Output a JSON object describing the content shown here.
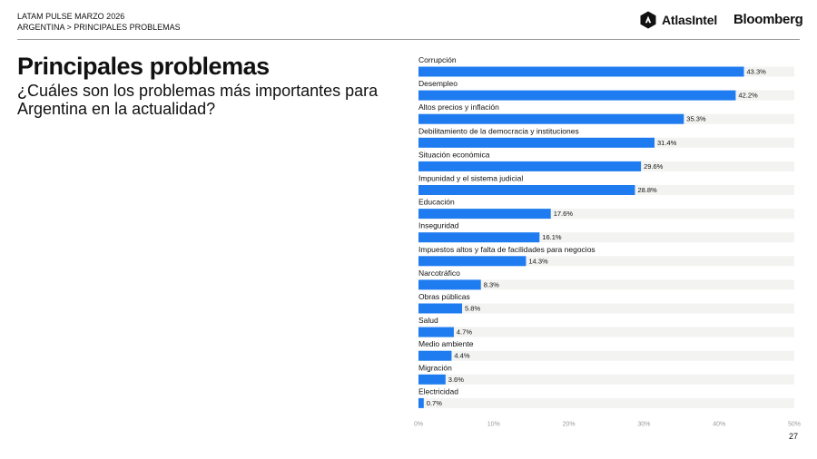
{
  "header": {
    "line1": "LATAM PULSE MARZO 2026",
    "line2": "ARGENTINA > PRINCIPALES PROBLEMAS"
  },
  "brands": {
    "atlas": "AtlasIntel",
    "bloomberg": "Bloomberg"
  },
  "main": {
    "title": "Principales problemas",
    "subtitle": "¿Cuáles son los problemas más importantes para Argentina en la actualidad?"
  },
  "colors": {
    "bar": "#1f7cf0",
    "track": "#f3f3f1",
    "text": "#111111",
    "tick": "#9a9a9a"
  },
  "chart_data": {
    "type": "bar",
    "orientation": "horizontal",
    "categories": [
      "Corrupción",
      "Desempleo",
      "Altos precios y inflación",
      "Debilitamiento de la democracia y instituciones",
      "Situación económica",
      "Impunidad y el sistema judicial",
      "Educación",
      "Inseguridad",
      "Impuestos altos y falta de facilidades para negocios",
      "Narcotráfico",
      "Obras públicas",
      "Salud",
      "Medio ambiente",
      "Migración",
      "Electricidad"
    ],
    "values": [
      43.3,
      42.2,
      35.3,
      31.4,
      29.6,
      28.8,
      17.6,
      16.1,
      14.3,
      8.3,
      5.8,
      4.7,
      4.4,
      3.6,
      0.7
    ],
    "value_labels": [
      "43.3%",
      "42.2%",
      "35.3%",
      "31.4%",
      "29.6%",
      "28.8%",
      "17.6%",
      "16.1%",
      "14.3%",
      "8.3%",
      "5.8%",
      "4.7%",
      "4.4%",
      "3.6%",
      "0.7%"
    ],
    "xlim": [
      0,
      50
    ],
    "xticks": [
      0,
      10,
      20,
      30,
      40,
      50
    ],
    "xtick_labels": [
      "0%",
      "10%",
      "20%",
      "30%",
      "40%",
      "50%"
    ],
    "grid": false,
    "legend": "none"
  },
  "footer": {
    "page_number": "27"
  }
}
